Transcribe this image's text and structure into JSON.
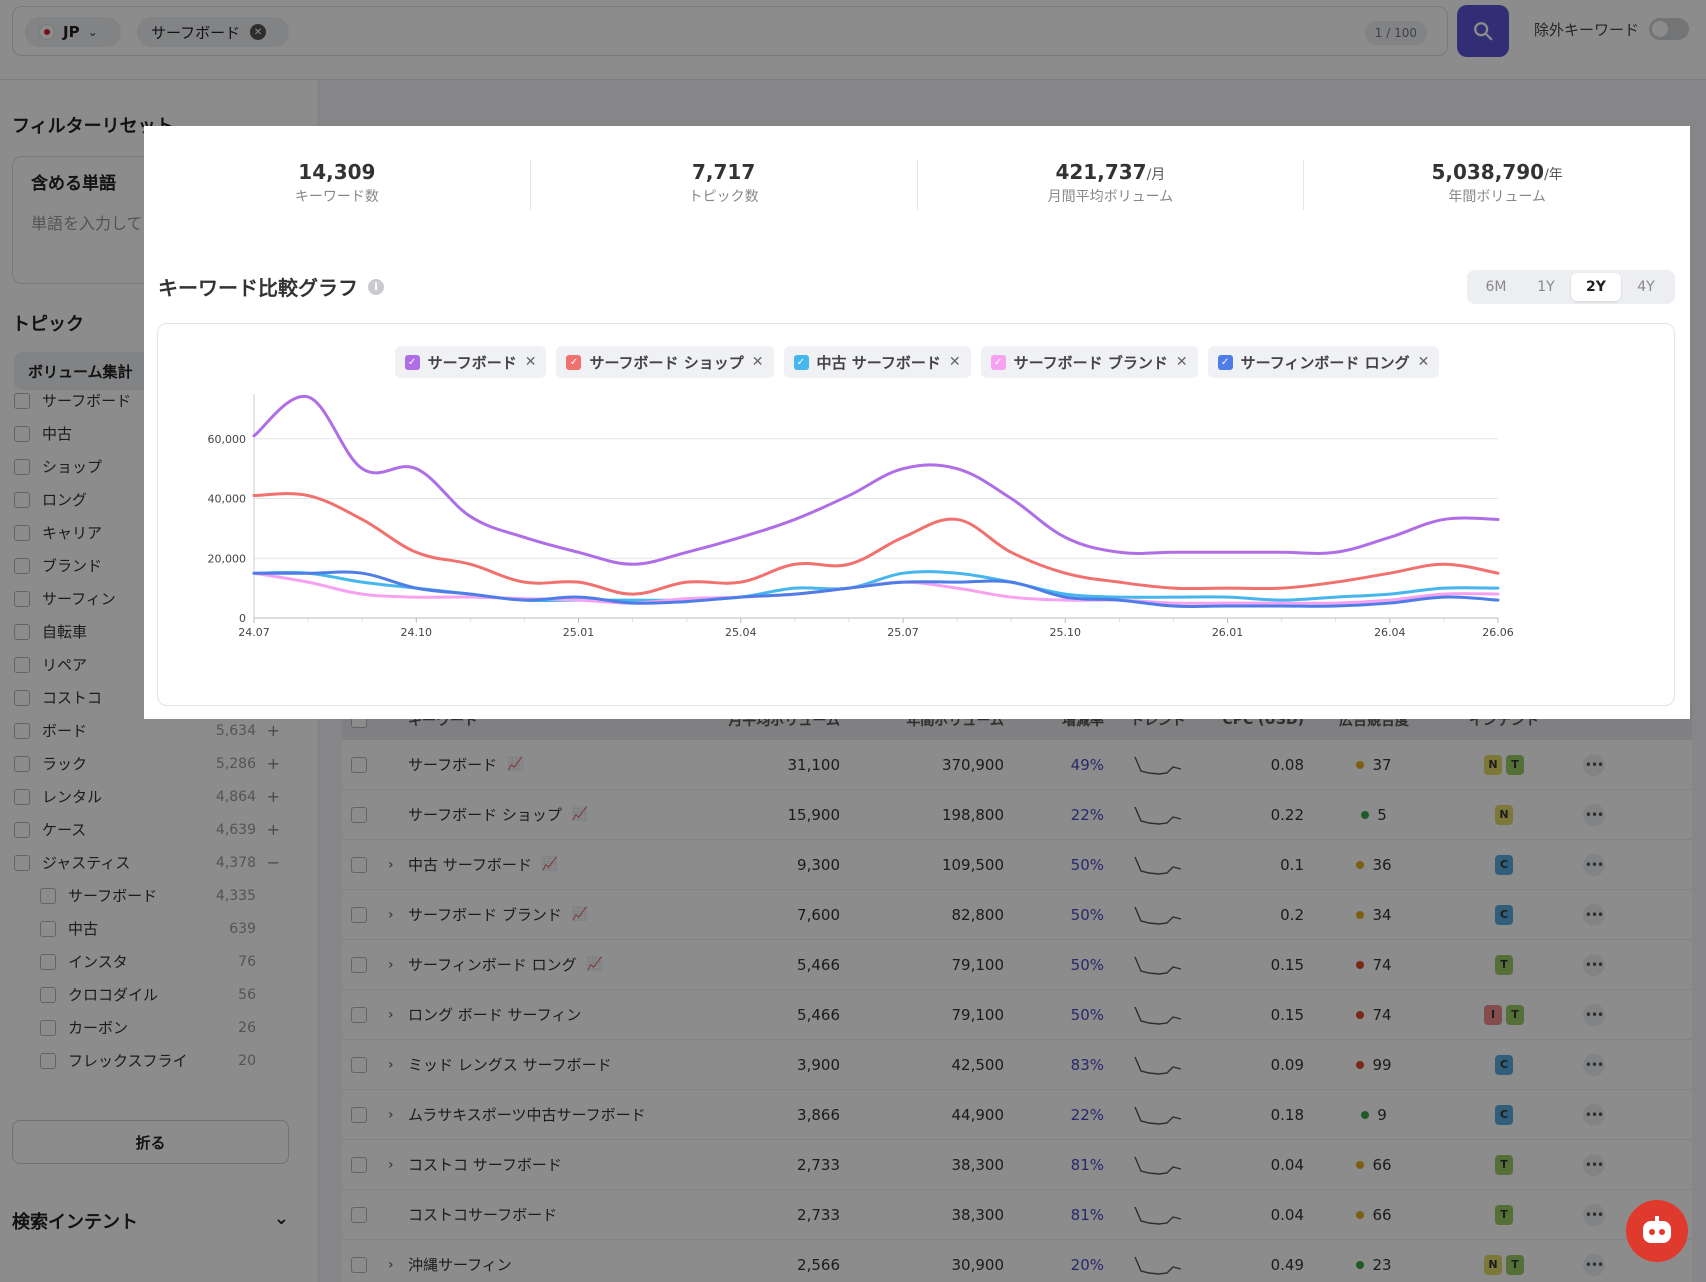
{
  "search": {
    "country": "JP",
    "keyword_chip": "サーフボード",
    "counter": "1 / 100",
    "exclude_label": "除外キーワード"
  },
  "sidebar": {
    "filter_reset": "フィルターリセット",
    "include_label": "含める単語",
    "include_placeholder": "単語を入力して",
    "topic_title": "トピック",
    "volume_btn": "ボリューム集計",
    "topics": [
      {
        "name": "サーフボード",
        "count": "",
        "sub": false
      },
      {
        "name": "中古",
        "count": "",
        "sub": false
      },
      {
        "name": "ショップ",
        "count": "",
        "sub": false
      },
      {
        "name": "ロング",
        "count": "",
        "sub": false
      },
      {
        "name": "キャリア",
        "count": "",
        "sub": false
      },
      {
        "name": "ブランド",
        "count": "",
        "sub": false
      },
      {
        "name": "サーフィン",
        "count": "",
        "sub": false
      },
      {
        "name": "自転車",
        "count": "",
        "sub": false
      },
      {
        "name": "リペア",
        "count": "",
        "sub": false
      },
      {
        "name": "コストコ",
        "count": "",
        "sub": false
      },
      {
        "name": "ボード",
        "count": "5,634",
        "sub": false,
        "sign": "+"
      },
      {
        "name": "ラック",
        "count": "5,286",
        "sub": false,
        "sign": "+"
      },
      {
        "name": "レンタル",
        "count": "4,864",
        "sub": false,
        "sign": "+"
      },
      {
        "name": "ケース",
        "count": "4,639",
        "sub": false,
        "sign": "+"
      },
      {
        "name": "ジャスティス",
        "count": "4,378",
        "sub": false,
        "sign": "−"
      },
      {
        "name": "サーフボード",
        "count": "4,335",
        "sub": true
      },
      {
        "name": "中古",
        "count": "639",
        "sub": true
      },
      {
        "name": "インスタ",
        "count": "76",
        "sub": true
      },
      {
        "name": "クロコダイル",
        "count": "56",
        "sub": true
      },
      {
        "name": "カーボン",
        "count": "26",
        "sub": true
      },
      {
        "name": "フレックスフライ",
        "count": "20",
        "sub": true
      }
    ],
    "fold_btn": "折る",
    "intent_title": "検索インテント"
  },
  "table": {
    "headers": {
      "keyword": "キーワード",
      "monthly": "月平均ボリューム",
      "yearly": "年間ボリューム",
      "growth": "増減率",
      "trend": "トレンド",
      "cpc": "CPC (USD)",
      "competition": "広告競合度",
      "intent": "インテント"
    },
    "rows": [
      {
        "kw": "サーフボード",
        "expand": false,
        "chart": true,
        "mv": "31,100",
        "yv": "370,900",
        "gr": "49%",
        "cpc": "0.08",
        "comp": "37",
        "compColor": "#e0b020",
        "intent": [
          "N",
          "T"
        ]
      },
      {
        "kw": "サーフボード ショップ",
        "expand": false,
        "chart": true,
        "mv": "15,900",
        "yv": "198,800",
        "gr": "22%",
        "cpc": "0.22",
        "comp": "5",
        "compColor": "#3aa648",
        "intent": [
          "N"
        ]
      },
      {
        "kw": "中古 サーフボード",
        "expand": true,
        "chart": true,
        "mv": "9,300",
        "yv": "109,500",
        "gr": "50%",
        "cpc": "0.1",
        "comp": "36",
        "compColor": "#e0b020",
        "intent": [
          "C"
        ]
      },
      {
        "kw": "サーフボード ブランド",
        "expand": true,
        "chart": true,
        "mv": "7,600",
        "yv": "82,800",
        "gr": "50%",
        "cpc": "0.2",
        "comp": "34",
        "compColor": "#e0b020",
        "intent": [
          "C"
        ]
      },
      {
        "kw": "サーフィンボード ロング",
        "expand": true,
        "chart": true,
        "mv": "5,466",
        "yv": "79,100",
        "gr": "50%",
        "cpc": "0.15",
        "comp": "74",
        "compColor": "#e04a2a",
        "intent": [
          "T"
        ]
      },
      {
        "kw": "ロング ボード サーフィン",
        "expand": true,
        "chart": false,
        "mv": "5,466",
        "yv": "79,100",
        "gr": "50%",
        "cpc": "0.15",
        "comp": "74",
        "compColor": "#e04a2a",
        "intent": [
          "I",
          "T"
        ]
      },
      {
        "kw": "ミッド レングス サーフボード",
        "expand": true,
        "chart": false,
        "mv": "3,900",
        "yv": "42,500",
        "gr": "83%",
        "cpc": "0.09",
        "comp": "99",
        "compColor": "#e04a2a",
        "intent": [
          "C"
        ]
      },
      {
        "kw": "ムラサキスポーツ中古サーフボード",
        "expand": true,
        "chart": false,
        "mv": "3,866",
        "yv": "44,900",
        "gr": "22%",
        "cpc": "0.18",
        "comp": "9",
        "compColor": "#3aa648",
        "intent": [
          "C"
        ]
      },
      {
        "kw": "コストコ サーフボード",
        "expand": true,
        "chart": false,
        "mv": "2,733",
        "yv": "38,300",
        "gr": "81%",
        "cpc": "0.04",
        "comp": "66",
        "compColor": "#e0b020",
        "intent": [
          "T"
        ]
      },
      {
        "kw": "コストコサーフボード",
        "expand": false,
        "chart": false,
        "mv": "2,733",
        "yv": "38,300",
        "gr": "81%",
        "cpc": "0.04",
        "comp": "66",
        "compColor": "#e0b020",
        "intent": [
          "T"
        ]
      },
      {
        "kw": "沖縄サーフィン",
        "expand": true,
        "chart": false,
        "mv": "2,566",
        "yv": "30,900",
        "gr": "20%",
        "cpc": "0.49",
        "comp": "23",
        "compColor": "#3aa648",
        "intent": [
          "N",
          "T"
        ]
      }
    ]
  },
  "modal": {
    "stats": [
      {
        "value": "14,309",
        "unit": "",
        "label": "キーワード数"
      },
      {
        "value": "7,717",
        "unit": "",
        "label": "トピック数"
      },
      {
        "value": "421,737",
        "unit": "/月",
        "label": "月間平均ボリューム"
      },
      {
        "value": "5,038,790",
        "unit": "/年",
        "label": "年間ボリューム"
      }
    ],
    "graph_title": "キーワード比較グラフ",
    "ranges": [
      "6M",
      "1Y",
      "2Y",
      "4Y"
    ],
    "active_range": "2Y"
  },
  "chart_data": {
    "type": "line",
    "x": [
      "24.07",
      "24.08",
      "24.09",
      "24.10",
      "24.11",
      "24.12",
      "25.01",
      "25.02",
      "25.03",
      "25.04",
      "25.05",
      "25.06",
      "25.07",
      "25.08",
      "25.09",
      "25.10",
      "25.11",
      "25.12",
      "26.01",
      "26.02",
      "26.03",
      "26.04",
      "26.05",
      "26.06"
    ],
    "x_tick_labels": [
      "24.07",
      "24.10",
      "25.01",
      "25.04",
      "25.07",
      "25.10",
      "26.01",
      "26.04",
      "26.06"
    ],
    "ylim": [
      0,
      75000
    ],
    "y_ticks": [
      "0",
      "20,000",
      "40,000",
      "60,000"
    ],
    "grid": true,
    "legend": "top-center",
    "series": [
      {
        "name": "サーフボード",
        "color": "#b06ee6",
        "values": [
          61000,
          74000,
          50000,
          50000,
          34000,
          27000,
          22000,
          18000,
          22000,
          27000,
          33000,
          41000,
          50000,
          50000,
          40000,
          27000,
          22000,
          22000,
          22000,
          22000,
          22000,
          27000,
          33000,
          33000
        ]
      },
      {
        "name": "サーフボード ショップ",
        "color": "#f0716e",
        "values": [
          41000,
          41000,
          33000,
          22000,
          18000,
          12000,
          12000,
          8000,
          12000,
          12000,
          18000,
          18000,
          27000,
          33000,
          22000,
          15000,
          12000,
          10000,
          10000,
          10000,
          12000,
          15000,
          18000,
          15000
        ]
      },
      {
        "name": "中古 サーフボード",
        "color": "#45b6ee",
        "values": [
          15000,
          15000,
          12000,
          10000,
          8000,
          6000,
          6000,
          6000,
          6000,
          7000,
          10000,
          10000,
          15000,
          15000,
          12000,
          8000,
          7000,
          7000,
          7000,
          6000,
          7000,
          8000,
          10000,
          10000
        ]
      },
      {
        "name": "サーフボード ブランド",
        "color": "#f7a2f0",
        "values": [
          15000,
          12000,
          8000,
          7000,
          7000,
          6500,
          6000,
          5000,
          6500,
          7000,
          8000,
          10000,
          12000,
          10000,
          7000,
          6000,
          6000,
          5000,
          5000,
          5000,
          5000,
          6000,
          8000,
          8000
        ]
      },
      {
        "name": "サーフィンボード ロング",
        "color": "#4f7de8",
        "values": [
          15000,
          15000,
          15000,
          10000,
          8000,
          6000,
          7000,
          5000,
          5500,
          7000,
          8000,
          10000,
          12000,
          12000,
          12000,
          7000,
          6000,
          4000,
          4000,
          4000,
          4000,
          5000,
          7000,
          6000
        ]
      }
    ]
  }
}
